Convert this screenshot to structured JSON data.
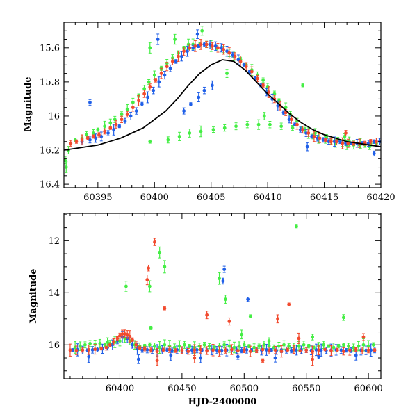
{
  "chart_data": [
    {
      "type": "scatter",
      "panel": "top",
      "title": "",
      "xlabel": "",
      "ylabel": "Magnitude",
      "xlim": [
        60392,
        60420
      ],
      "ylim": [
        16.42,
        15.45
      ],
      "y_inverted": true,
      "x_ticks": [
        60395,
        60400,
        60405,
        60410,
        60415,
        60420
      ],
      "y_ticks": [
        15.6,
        15.8,
        16,
        16.2,
        16.4
      ],
      "y_tick_labels": [
        "15.6",
        "15.8",
        "16",
        "16.2",
        "16.4"
      ],
      "model_curve": {
        "name": "model",
        "color": "#000000",
        "x": [
          60392.0,
          60393.0,
          60394.0,
          60395.0,
          60396.0,
          60397.0,
          60398.0,
          60399.0,
          60400.0,
          60401.0,
          60402.0,
          60403.0,
          60404.0,
          60405.0,
          60406.0,
          60407.0,
          60408.0,
          60409.0,
          60410.0,
          60411.0,
          60412.0,
          60413.0,
          60414.0,
          60415.0,
          60416.0,
          60417.0,
          60418.0,
          60419.0,
          60420.0
        ],
        "y": [
          16.2,
          16.19,
          16.18,
          16.17,
          16.15,
          16.13,
          16.1,
          16.07,
          16.02,
          15.97,
          15.9,
          15.82,
          15.75,
          15.7,
          15.67,
          15.68,
          15.73,
          15.8,
          15.87,
          15.93,
          15.99,
          16.04,
          16.08,
          16.11,
          16.13,
          16.15,
          16.16,
          16.17,
          16.18
        ]
      },
      "series": [
        {
          "name": "green",
          "color": "#44ee44",
          "x": [
            60392.1,
            60392.4,
            60393.0,
            60393.6,
            60394.0,
            60394.6,
            60395.0,
            60395.6,
            60396.1,
            60396.5,
            60397.1,
            60397.6,
            60398.1,
            60398.6,
            60399.1,
            60399.5,
            60400.0,
            60400.6,
            60401.1,
            60401.6,
            60402.1,
            60402.6,
            60403.0,
            60403.4,
            60404.0,
            60404.6,
            60405.0,
            60405.5,
            60406.1,
            60406.6,
            60407.0,
            60407.6,
            60408.1,
            60408.6,
            60409.1,
            60409.6,
            60410.0,
            60410.6,
            60411.0,
            60411.6,
            60412.0,
            60412.6,
            60413.0,
            60413.6,
            60414.0,
            60414.5,
            60415.1,
            60415.6,
            60416.0,
            60416.6,
            60417.0,
            60417.6,
            60418.1,
            60418.6,
            60419.1,
            60419.6,
            60399.6,
            60401.2,
            60402.2,
            60403.1,
            60404.1,
            60405.2,
            60406.2,
            60407.2,
            60408.2,
            60409.2,
            60410.2,
            60411.2,
            60412.2,
            60413.3,
            60414.2,
            60415.2,
            60416.2,
            60417.2,
            60418.2,
            60392.2,
            60399.6,
            60401.8,
            60404.2,
            60406.4,
            60409.7,
            60413.1,
            60416.8,
            60419.0
          ],
          "y": [
            16.26,
            16.2,
            16.14,
            16.13,
            16.11,
            16.1,
            16.08,
            16.06,
            16.04,
            16.02,
            15.99,
            15.96,
            15.92,
            15.88,
            15.84,
            15.8,
            15.76,
            15.72,
            15.69,
            15.66,
            15.63,
            15.6,
            15.58,
            15.58,
            15.58,
            15.58,
            15.59,
            15.6,
            15.61,
            15.63,
            15.65,
            15.67,
            15.7,
            15.73,
            15.76,
            15.79,
            15.83,
            15.87,
            15.91,
            15.95,
            15.99,
            16.03,
            16.07,
            16.1,
            16.12,
            16.13,
            16.14,
            16.15,
            16.16,
            16.16,
            16.17,
            16.17,
            16.17,
            16.17,
            16.16,
            16.16,
            16.15,
            16.14,
            16.12,
            16.1,
            16.09,
            16.08,
            16.07,
            16.06,
            16.05,
            16.05,
            16.05,
            16.06,
            16.07,
            16.08,
            16.1,
            16.12,
            16.14,
            16.15,
            16.16,
            16.3,
            15.6,
            15.55,
            15.5,
            15.75,
            16.0,
            15.82,
            16.12,
            16.18
          ]
        },
        {
          "name": "blue",
          "color": "#1f5fe8",
          "x": [
            60393.6,
            60394.3,
            60394.8,
            60395.3,
            60395.9,
            60396.4,
            60396.9,
            60397.4,
            60397.9,
            60398.4,
            60398.9,
            60399.4,
            60399.9,
            60400.4,
            60400.9,
            60401.4,
            60401.9,
            60402.4,
            60402.9,
            60403.4,
            60403.9,
            60404.4,
            60404.9,
            60405.4,
            60405.9,
            60406.4,
            60406.9,
            60407.4,
            60407.9,
            60408.4,
            60408.9,
            60409.4,
            60409.9,
            60410.4,
            60410.9,
            60411.4,
            60411.9,
            60412.4,
            60412.9,
            60413.4,
            60413.9,
            60414.4,
            60414.9,
            60415.4,
            60415.9,
            60416.4,
            60416.9,
            60417.4,
            60417.9,
            60418.4,
            60418.9,
            60419.4,
            60419.9,
            60402.6,
            60403.2,
            60403.9,
            60404.4,
            60405.1,
            60394.3,
            60400.3,
            60403.8,
            60413.5,
            60419.4
          ],
          "y": [
            16.15,
            16.14,
            16.13,
            16.12,
            16.1,
            16.08,
            16.06,
            16.03,
            16.0,
            15.97,
            15.93,
            15.89,
            15.85,
            15.8,
            15.76,
            15.72,
            15.68,
            15.65,
            15.62,
            15.6,
            15.59,
            15.58,
            15.58,
            15.59,
            15.6,
            15.62,
            15.64,
            15.67,
            15.7,
            15.74,
            15.78,
            15.82,
            15.86,
            15.9,
            15.94,
            15.98,
            16.02,
            16.05,
            16.08,
            16.1,
            16.12,
            16.13,
            16.14,
            16.15,
            16.15,
            16.15,
            16.16,
            16.16,
            16.16,
            16.16,
            16.16,
            16.15,
            16.15,
            15.97,
            15.93,
            15.89,
            15.85,
            15.82,
            15.92,
            15.55,
            15.52,
            16.18,
            16.22
          ]
        },
        {
          "name": "red",
          "color": "#f24a2e",
          "x": [
            60392.6,
            60393.1,
            60393.6,
            60394.1,
            60394.6,
            60395.1,
            60395.6,
            60396.1,
            60396.6,
            60397.1,
            60397.6,
            60398.1,
            60398.6,
            60399.1,
            60399.6,
            60400.1,
            60400.6,
            60401.1,
            60401.6,
            60402.1,
            60402.6,
            60403.1,
            60403.6,
            60404.1,
            60404.6,
            60405.1,
            60405.6,
            60406.1,
            60406.6,
            60407.1,
            60407.6,
            60408.1,
            60408.6,
            60409.1,
            60409.6,
            60410.1,
            60410.6,
            60411.1,
            60411.6,
            60412.1,
            60412.6,
            60413.1,
            60413.6,
            60414.1,
            60414.6,
            60415.1,
            60415.6,
            60416.1,
            60416.6,
            60417.1,
            60417.6,
            60418.1,
            60418.6,
            60419.1,
            60419.6,
            60416.9
          ],
          "y": [
            16.16,
            16.15,
            16.14,
            16.13,
            16.12,
            16.11,
            16.09,
            16.07,
            16.05,
            16.02,
            15.99,
            15.95,
            15.91,
            15.87,
            15.83,
            15.79,
            15.75,
            15.71,
            15.68,
            15.65,
            15.62,
            15.6,
            15.59,
            15.58,
            15.58,
            15.59,
            15.6,
            15.61,
            15.63,
            15.65,
            15.68,
            15.71,
            15.74,
            15.78,
            15.82,
            15.86,
            15.9,
            15.94,
            15.98,
            16.02,
            16.05,
            16.08,
            16.1,
            16.12,
            16.13,
            16.14,
            16.15,
            16.15,
            16.16,
            16.16,
            16.16,
            16.16,
            16.16,
            16.15,
            16.15,
            16.1
          ]
        }
      ]
    },
    {
      "type": "scatter",
      "panel": "bottom",
      "title": "",
      "xlabel": "HJD-2400000",
      "ylabel": "Magnitude",
      "xlim": [
        60355,
        60610
      ],
      "ylim": [
        17.3,
        10.95
      ],
      "y_inverted": true,
      "x_ticks": [
        60400,
        60450,
        60500,
        60550,
        60600
      ],
      "y_ticks": [
        12,
        14,
        16
      ],
      "y_tick_labels": [
        "12",
        "14",
        "16"
      ],
      "series": [
        {
          "name": "blue",
          "color": "#1f5fe8",
          "x": [
            60362,
            60366,
            60370,
            60374,
            60378,
            60382,
            60386,
            60390,
            60394,
            60398,
            60402,
            60406,
            60410,
            60414,
            60418,
            60422,
            60426,
            60430,
            60434,
            60438,
            60442,
            60446,
            60450,
            60454,
            60458,
            60462,
            60466,
            60470,
            60474,
            60478,
            60482,
            60486,
            60490,
            60494,
            60498,
            60502,
            60506,
            60510,
            60514,
            60518,
            60522,
            60526,
            60530,
            60534,
            60538,
            60542,
            60546,
            60550,
            60554,
            60558,
            60562,
            60566,
            60570,
            60574,
            60578,
            60582,
            60586,
            60590,
            60594,
            60598,
            60602,
            60605,
            60484,
            60483,
            60503,
            60375,
            60415,
            60441,
            60465,
            60495,
            60525,
            60560,
            60590
          ],
          "y": [
            16.2,
            16.19,
            16.2,
            16.21,
            16.19,
            16.18,
            16.15,
            16.1,
            16.0,
            15.85,
            15.7,
            15.75,
            16.0,
            16.15,
            16.2,
            16.19,
            16.2,
            16.21,
            16.19,
            16.2,
            16.21,
            16.19,
            16.2,
            16.21,
            16.2,
            16.19,
            16.2,
            16.21,
            16.19,
            16.2,
            16.21,
            16.2,
            16.19,
            16.2,
            16.21,
            16.19,
            16.2,
            16.21,
            16.2,
            16.19,
            16.2,
            16.21,
            16.19,
            16.2,
            16.21,
            16.2,
            16.19,
            16.2,
            16.21,
            16.19,
            16.2,
            16.21,
            16.2,
            16.19,
            16.2,
            16.21,
            16.2,
            16.19,
            16.2,
            16.21,
            16.2,
            16.2,
            13.1,
            13.55,
            14.25,
            16.45,
            16.55,
            16.4,
            16.5,
            16.45,
            16.5,
            16.45,
            16.4
          ]
        },
        {
          "name": "green",
          "color": "#44ee44",
          "x": [
            60364,
            60368,
            60372,
            60376,
            60380,
            60384,
            60388,
            60392,
            60396,
            60400,
            60404,
            60408,
            60412,
            60416,
            60420,
            60424,
            60428,
            60432,
            60436,
            60440,
            60444,
            60448,
            60452,
            60456,
            60460,
            60464,
            60468,
            60472,
            60476,
            60480,
            60484,
            60488,
            60492,
            60496,
            60500,
            60504,
            60508,
            60512,
            60516,
            60520,
            60524,
            60528,
            60532,
            60536,
            60540,
            60544,
            60548,
            60552,
            60556,
            60560,
            60564,
            60568,
            60572,
            60576,
            60580,
            60584,
            60588,
            60592,
            60596,
            60600,
            60604,
            60542,
            60432,
            60436,
            60424,
            60405,
            60485,
            60480,
            60505,
            60580,
            60498,
            60425,
            60390,
            60520,
            60555
          ],
          "y": [
            16.1,
            16.05,
            16.0,
            15.95,
            15.98,
            15.95,
            16.0,
            15.95,
            15.9,
            15.85,
            15.75,
            15.85,
            16.0,
            16.05,
            16.05,
            16.0,
            16.05,
            16.1,
            16.0,
            16.05,
            16.1,
            16.05,
            16.0,
            16.05,
            16.1,
            16.05,
            16.0,
            16.05,
            16.1,
            16.05,
            16.0,
            16.05,
            16.1,
            16.05,
            16.0,
            16.05,
            16.1,
            16.05,
            16.0,
            16.05,
            16.1,
            16.05,
            16.0,
            16.05,
            16.1,
            16.05,
            16.0,
            16.05,
            16.1,
            16.05,
            16.0,
            16.05,
            16.1,
            16.05,
            16.0,
            16.05,
            16.1,
            16.05,
            16.0,
            16.05,
            16.0,
            11.45,
            12.45,
            13.0,
            13.75,
            13.75,
            14.25,
            13.45,
            14.9,
            14.95,
            15.6,
            15.35,
            15.9,
            15.85,
            15.7
          ]
        },
        {
          "name": "red",
          "color": "#f24a2e",
          "x": [
            60360,
            60365,
            60370,
            60375,
            60380,
            60385,
            60389,
            60392,
            60395,
            60398,
            60400,
            60402,
            60404,
            60406,
            60408,
            60410,
            60413,
            60416,
            60420,
            60425,
            60430,
            60435,
            60440,
            60445,
            60450,
            60455,
            60460,
            60465,
            60470,
            60475,
            60480,
            60485,
            60490,
            60495,
            60500,
            60505,
            60510,
            60515,
            60520,
            60525,
            60530,
            60535,
            60540,
            60545,
            60550,
            60555,
            60560,
            60565,
            60570,
            60575,
            60580,
            60585,
            60590,
            60595,
            60600,
            60605,
            60428,
            60422,
            60423,
            60436,
            60470,
            60488,
            60527,
            60536,
            60544,
            60596,
            60430,
            60460,
            60515,
            60555
          ],
          "y": [
            16.2,
            16.21,
            16.2,
            16.19,
            16.17,
            16.14,
            16.1,
            16.0,
            15.88,
            15.75,
            15.65,
            15.58,
            15.58,
            15.6,
            15.68,
            15.8,
            16.0,
            16.12,
            16.15,
            16.2,
            16.25,
            16.2,
            16.18,
            16.22,
            16.2,
            16.25,
            16.2,
            16.18,
            16.22,
            16.2,
            16.25,
            16.2,
            16.18,
            16.22,
            16.2,
            16.25,
            16.2,
            16.18,
            16.22,
            16.2,
            16.25,
            16.2,
            16.18,
            16.22,
            16.2,
            16.25,
            16.2,
            16.18,
            16.22,
            16.2,
            16.25,
            16.2,
            16.18,
            16.22,
            16.2,
            16.2,
            12.05,
            13.5,
            13.05,
            14.6,
            14.85,
            15.1,
            15.0,
            14.45,
            15.75,
            15.7,
            16.6,
            16.5,
            16.6,
            16.55
          ]
        }
      ]
    }
  ]
}
